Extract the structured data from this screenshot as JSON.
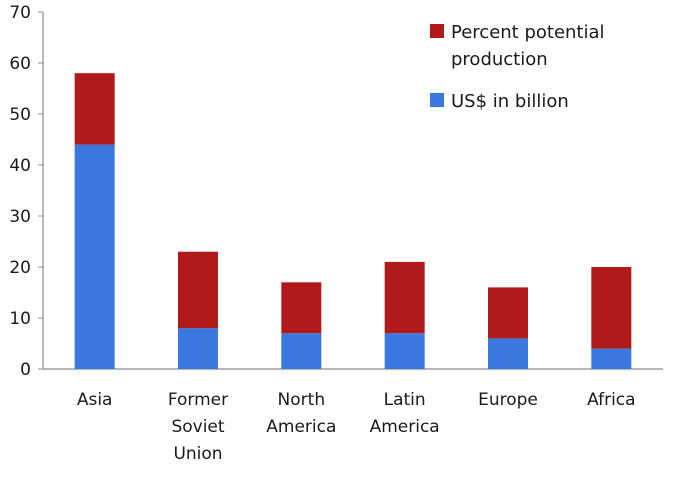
{
  "chart_data": {
    "type": "bar",
    "stacked": true,
    "categories": [
      [
        "Asia"
      ],
      [
        "Former",
        "Soviet",
        "Union"
      ],
      [
        "North",
        "America"
      ],
      [
        "Latin",
        "America"
      ],
      [
        "Europe"
      ],
      [
        "Africa"
      ]
    ],
    "series": [
      {
        "name": "US$ in billion",
        "color": "#3a78e0",
        "values": [
          44,
          8,
          7,
          7,
          6,
          4
        ]
      },
      {
        "name": "Percent potential production",
        "color": "#b01a1a",
        "values": [
          14,
          15,
          10,
          14,
          10,
          16
        ]
      }
    ],
    "legend": {
      "position": "top-right",
      "entries": [
        {
          "label": [
            "Percent potential",
            "production"
          ],
          "color": "#b01a1a"
        },
        {
          "label": [
            "US$ in billion"
          ],
          "color": "#3a78e0"
        }
      ]
    },
    "yticks": [
      "0",
      "10",
      "20",
      "30",
      "40",
      "50",
      "60",
      "70"
    ],
    "ylim": [
      0,
      70
    ],
    "grid": false,
    "title": "",
    "xlabel": "",
    "ylabel": ""
  }
}
